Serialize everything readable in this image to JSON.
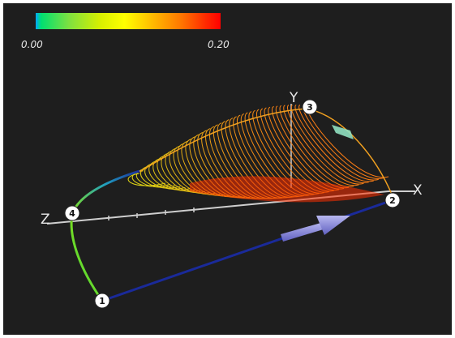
{
  "colorbar": {
    "min_label": "0.00",
    "max_label": "0.20",
    "gradient": [
      "#00a8ff",
      "#00e070",
      "#d8f000",
      "#ffff00",
      "#ff7a00",
      "#ff0000"
    ]
  },
  "axes": {
    "x_label": "X",
    "y_label": "Y",
    "z_label": "Z"
  },
  "points": [
    {
      "label": "1"
    },
    {
      "label": "2"
    },
    {
      "label": "3"
    },
    {
      "label": "4"
    }
  ],
  "colors": {
    "background": "#1e1e1e",
    "path_blue": "#1a2a9a",
    "arrow": "#8a8ae0",
    "mesh_low": "#d8f000",
    "mesh_high": "#ff3000"
  }
}
